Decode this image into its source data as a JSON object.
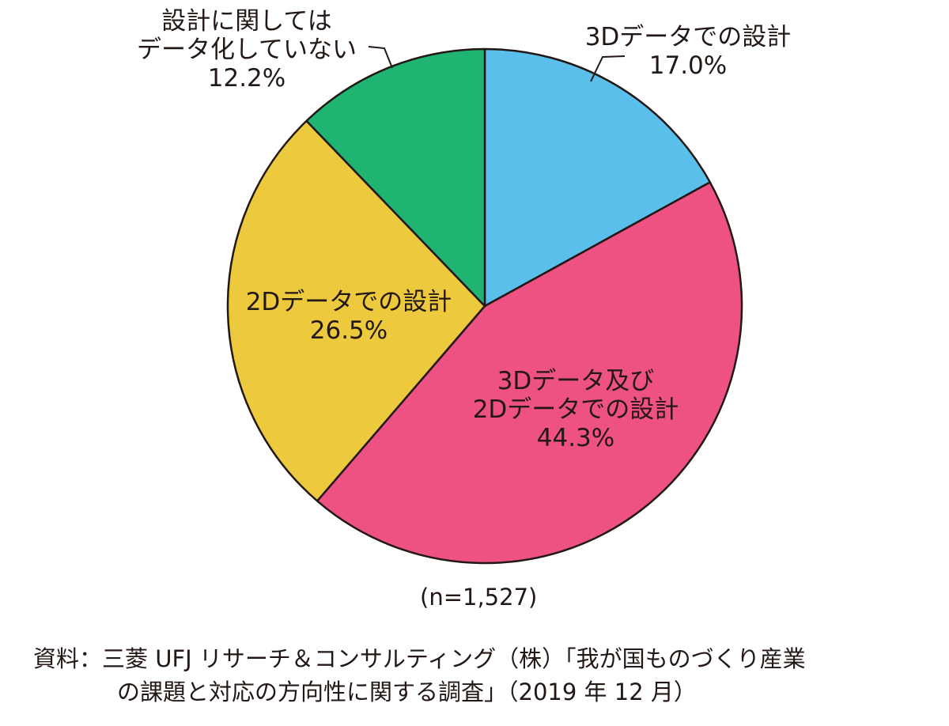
{
  "chart_data": {
    "type": "pie",
    "title": "",
    "start": "top",
    "direction": "clockwise",
    "slices": [
      {
        "label_lines": [
          "3Dデータでの設計"
        ],
        "value": 17.0,
        "value_label": "17.0%",
        "color": "#5BBFEB"
      },
      {
        "label_lines": [
          "3Dデータ及び",
          "2Dデータでの設計"
        ],
        "value": 44.3,
        "value_label": "44.3%",
        "color": "#EE5283"
      },
      {
        "label_lines": [
          "2Dデータでの設計"
        ],
        "value": 26.5,
        "value_label": "26.5%",
        "color": "#ECC93D"
      },
      {
        "label_lines": [
          "設計に関しては",
          "データ化していない"
        ],
        "value": 12.2,
        "value_label": "12.2%",
        "color": "#1FB472"
      }
    ],
    "sample_size": "(n=1,527)"
  },
  "source": {
    "line1": "資料：三菱 UFJ リサーチ＆コンサルティング（株）「我が国ものづくり産業",
    "line2": "の課題と対応の方向性に関する調査」（2019 年 12 月）"
  }
}
